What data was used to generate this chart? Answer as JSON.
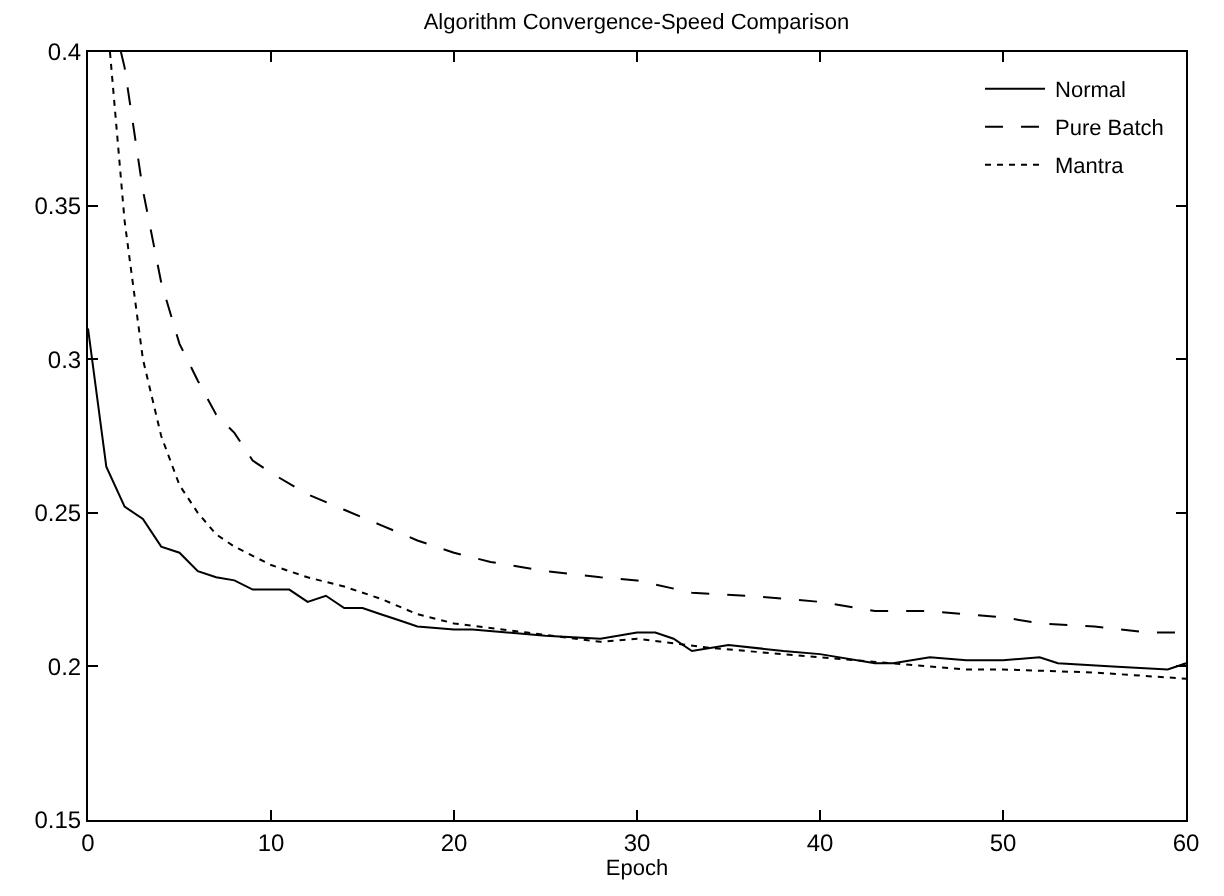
{
  "chart_data": {
    "type": "line",
    "title": "Algorithm Convergence-Speed Comparison",
    "xlabel": "Epoch",
    "xlim": [
      0,
      60
    ],
    "ylim": [
      0.15,
      0.4
    ],
    "xticks": [
      0,
      10,
      20,
      30,
      40,
      50,
      60
    ],
    "yticks": [
      0.15,
      0.2,
      0.25,
      0.3,
      0.35,
      0.4
    ],
    "legend": "top right",
    "marker": "none",
    "series": [
      {
        "name": "Normal",
        "color": "#000000",
        "line_style": "solid",
        "x": [
          0,
          1,
          2,
          3,
          4,
          5,
          6,
          7,
          8,
          9,
          10,
          11,
          12,
          13,
          14,
          15,
          16,
          17,
          18,
          20,
          21,
          25,
          28,
          30,
          31,
          32,
          33,
          35,
          38,
          40,
          43,
          44,
          46,
          48,
          50,
          52,
          53,
          56,
          59,
          60
        ],
        "values": [
          0.31,
          0.265,
          0.252,
          0.248,
          0.239,
          0.237,
          0.231,
          0.229,
          0.228,
          0.225,
          0.225,
          0.225,
          0.221,
          0.223,
          0.219,
          0.219,
          0.217,
          0.215,
          0.213,
          0.212,
          0.212,
          0.21,
          0.209,
          0.211,
          0.211,
          0.209,
          0.205,
          0.207,
          0.205,
          0.204,
          0.201,
          0.201,
          0.203,
          0.202,
          0.202,
          0.203,
          0.201,
          0.2,
          0.199,
          0.201
        ]
      },
      {
        "name": "Pure Batch",
        "color": "#000000",
        "line_style": "dashed",
        "x": [
          1.8,
          2,
          3,
          4,
          5,
          6,
          7,
          8,
          9,
          10,
          12,
          14,
          16,
          18,
          20,
          22,
          25,
          28,
          30,
          33,
          36,
          40,
          43,
          46,
          50,
          52,
          55,
          58,
          60
        ],
        "values": [
          0.4,
          0.395,
          0.355,
          0.325,
          0.305,
          0.293,
          0.282,
          0.276,
          0.267,
          0.263,
          0.256,
          0.251,
          0.246,
          0.241,
          0.237,
          0.234,
          0.231,
          0.229,
          0.228,
          0.224,
          0.223,
          0.221,
          0.218,
          0.218,
          0.216,
          0.214,
          0.213,
          0.211,
          0.211
        ]
      },
      {
        "name": "Mantra",
        "color": "#000000",
        "line_style": "dotted",
        "x": [
          1.2,
          2,
          3,
          4,
          5,
          6,
          7,
          8,
          9,
          10,
          12,
          14,
          16,
          18,
          20,
          24,
          28,
          30,
          34,
          38,
          40,
          44,
          48,
          50,
          55,
          60
        ],
        "values": [
          0.4,
          0.345,
          0.3,
          0.275,
          0.259,
          0.25,
          0.243,
          0.239,
          0.236,
          0.233,
          0.229,
          0.226,
          0.222,
          0.217,
          0.214,
          0.211,
          0.208,
          0.209,
          0.206,
          0.204,
          0.203,
          0.201,
          0.199,
          0.199,
          0.198,
          0.196
        ]
      }
    ]
  }
}
